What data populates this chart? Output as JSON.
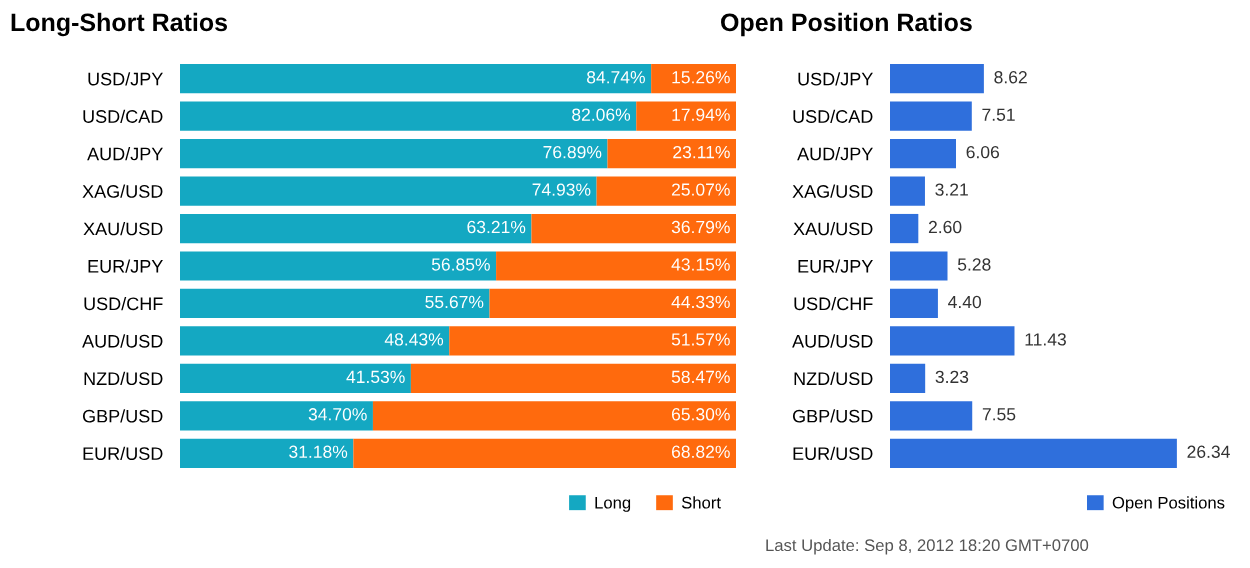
{
  "chart_data": [
    {
      "type": "bar",
      "title": "Long-Short Ratios",
      "orientation": "horizontal",
      "stacked": true,
      "legend": "bottom right",
      "categories": [
        "USD/JPY",
        "USD/CAD",
        "AUD/JPY",
        "XAG/USD",
        "XAU/USD",
        "EUR/JPY",
        "USD/CHF",
        "AUD/USD",
        "NZD/USD",
        "GBP/USD",
        "EUR/USD"
      ],
      "series": [
        {
          "name": "Long",
          "color": "#14a8c2",
          "values": [
            84.74,
            82.06,
            76.89,
            74.93,
            63.21,
            56.85,
            55.67,
            48.43,
            41.53,
            34.7,
            31.18
          ],
          "value_labels": [
            "84.74%",
            "82.06%",
            "76.89%",
            "74.93%",
            "63.21%",
            "56.85%",
            "55.67%",
            "48.43%",
            "41.53%",
            "34.70%",
            "31.18%"
          ]
        },
        {
          "name": "Short",
          "color": "#ff6a0d",
          "values": [
            15.26,
            17.94,
            23.11,
            25.07,
            36.79,
            43.15,
            44.33,
            51.57,
            58.47,
            65.3,
            68.82
          ],
          "value_labels": [
            "15.26%",
            "17.94%",
            "23.11%",
            "25.07%",
            "36.79%",
            "43.15%",
            "44.33%",
            "51.57%",
            "58.47%",
            "65.30%",
            "68.82%"
          ]
        }
      ]
    },
    {
      "type": "bar",
      "title": "Open Position Ratios",
      "orientation": "horizontal",
      "legend": "bottom right",
      "categories": [
        "USD/JPY",
        "USD/CAD",
        "AUD/JPY",
        "XAG/USD",
        "XAU/USD",
        "EUR/JPY",
        "USD/CHF",
        "AUD/USD",
        "NZD/USD",
        "GBP/USD",
        "EUR/USD"
      ],
      "series": [
        {
          "name": "Open Positions",
          "color": "#2f6fdc",
          "values": [
            8.62,
            7.51,
            6.06,
            3.21,
            2.6,
            5.28,
            4.4,
            11.43,
            3.23,
            7.55,
            26.34
          ],
          "value_labels": [
            "8.62",
            "7.51",
            "6.06",
            "3.21",
            "2.60",
            "5.28",
            "4.40",
            "11.43",
            "3.23",
            "7.55",
            "26.34"
          ]
        }
      ],
      "annotations": [
        "Last Update: Sep 8, 2012 18:20 GMT+0700"
      ]
    }
  ]
}
